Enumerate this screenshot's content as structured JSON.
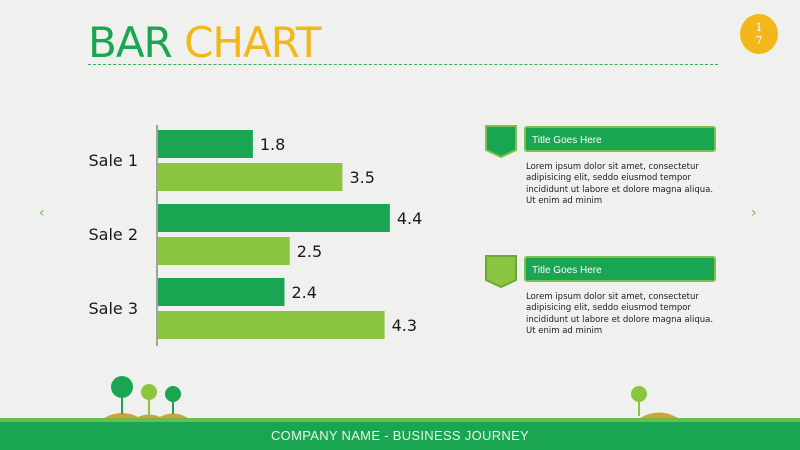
{
  "header": {
    "title_part1": "BAR",
    "title_part2": "CHART",
    "page_number_top": "1",
    "page_number_bottom": "7"
  },
  "navigation": {
    "prev_label": "‹",
    "next_label": "›"
  },
  "colors": {
    "primary_green": "#1aa552",
    "light_green": "#8bc540",
    "accent_yellow": "#f2b71a"
  },
  "chart_data": {
    "type": "bar",
    "orientation": "horizontal",
    "categories": [
      "Sale 1",
      "Sale 2",
      "Sale 3"
    ],
    "series": [
      {
        "values": [
          1.8,
          4.4,
          2.4
        ],
        "color": "#1aa552"
      },
      {
        "values": [
          3.5,
          2.5,
          4.3
        ],
        "color": "#8bc540"
      }
    ],
    "xlim": [
      0,
      4.4
    ],
    "grid": false,
    "legend": false
  },
  "text_boxes": [
    {
      "title": "Title Goes Here",
      "body": "Lorem ipsum dolor sit amet, consectetur adipisicing elit, seddo eiusmod tempor incididunt ut labore et dolore magna aliqua. Ut enim ad minim"
    },
    {
      "title": "Title Goes Here",
      "body": "Lorem ipsum dolor sit amet, consectetur adipisicing elit, seddo eiusmod tempor incididunt ut labore et dolore magna aliqua. Ut enim ad minim"
    }
  ],
  "footer": {
    "text": "COMPANY NAME - BUSINESS JOURNEY"
  }
}
